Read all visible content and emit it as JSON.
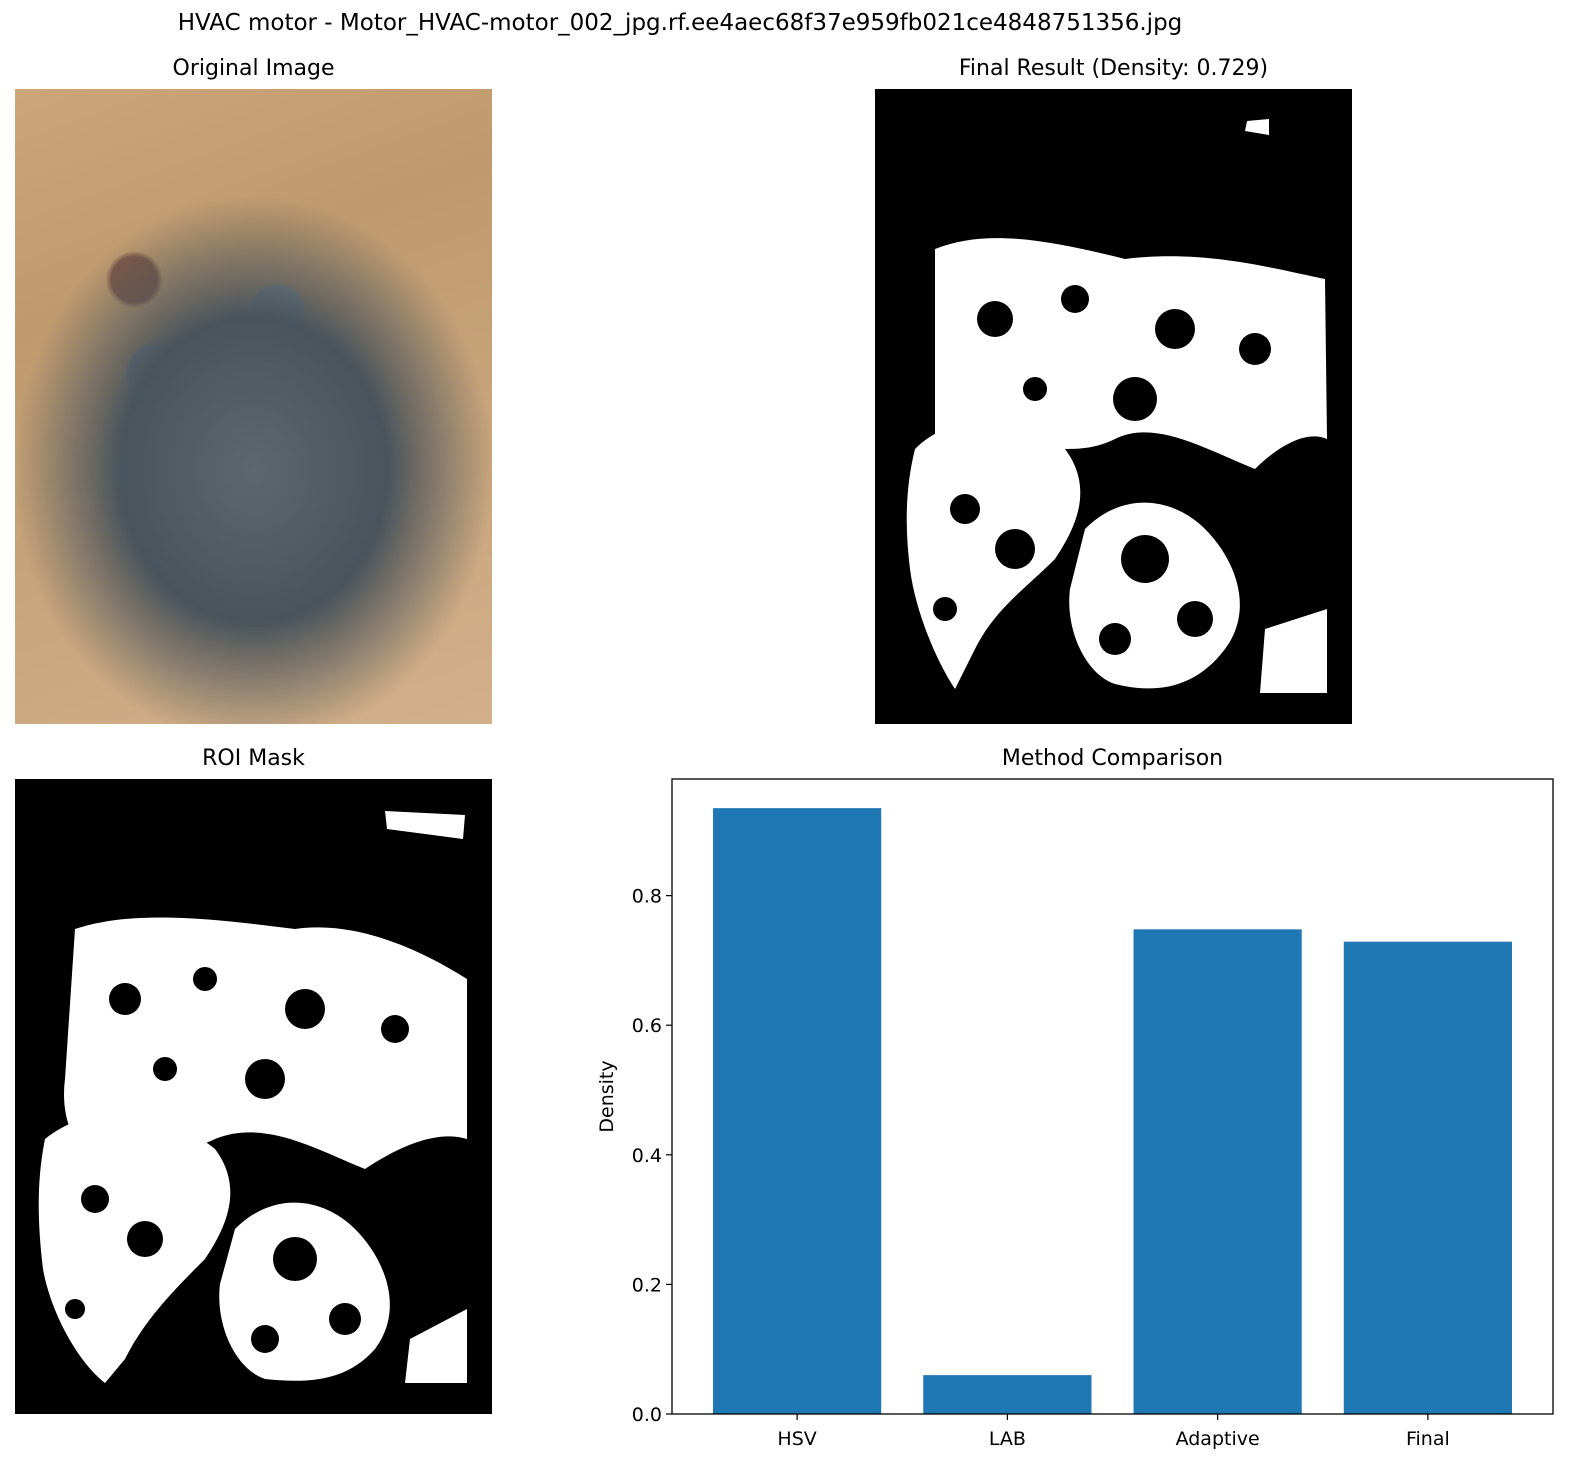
{
  "suptitle": "HVAC motor - Motor_HVAC-motor_002_jpg.rf.ee4aec68f37e959fb021ce4848751356.jpg",
  "panels": {
    "original_title": "Original Image",
    "final_title": "Final Result (Density: 0.729)",
    "roi_title": "ROI Mask",
    "chart_title": "Method Comparison"
  },
  "chart_data": {
    "type": "bar",
    "title": "Method Comparison",
    "categories": [
      "HSV",
      "LAB",
      "Adaptive",
      "Final"
    ],
    "values": [
      0.935,
      0.06,
      0.748,
      0.729
    ],
    "xlabel": "",
    "ylabel": "Density",
    "ylim": [
      0,
      0.98
    ],
    "yticks": [
      "0.0",
      "0.2",
      "0.4",
      "0.6",
      "0.8"
    ],
    "grid": false,
    "bar_color": "#1f77b4"
  }
}
